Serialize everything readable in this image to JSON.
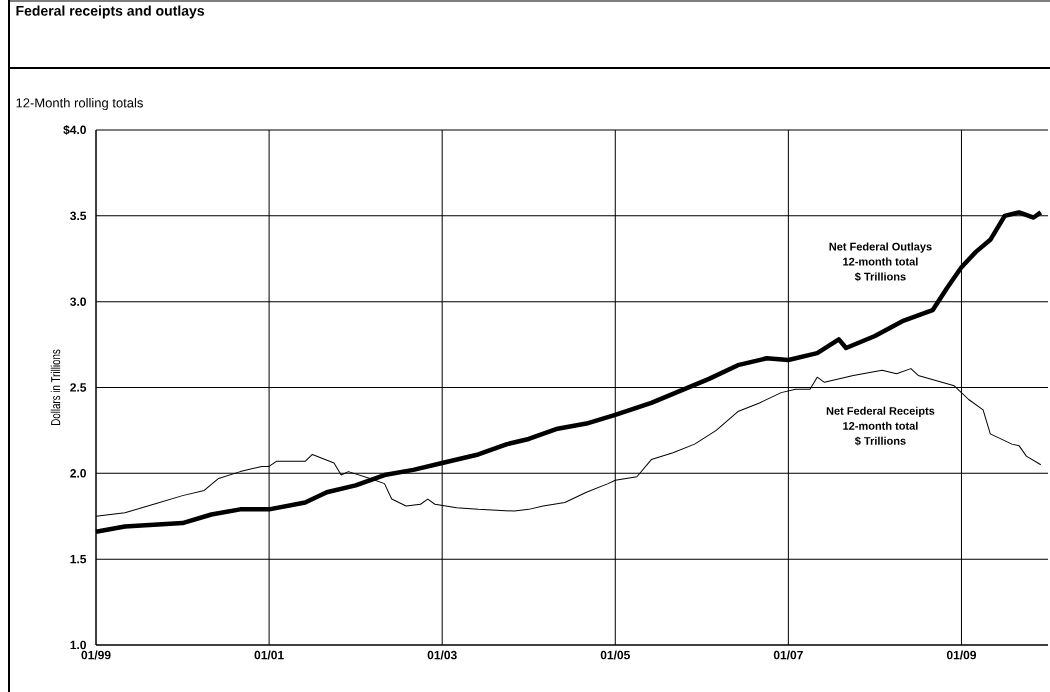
{
  "chart_data": {
    "type": "line",
    "title": "Federal receipts and outlays",
    "subtitle": "12-Month rolling totals",
    "ylabel": "Dollars in Trillions",
    "xlim": [
      "1999-01",
      "2010-01"
    ],
    "ylim": [
      1.0,
      4.0
    ],
    "xticks": [
      {
        "value": "1999-01",
        "label": "01/99"
      },
      {
        "value": "2001-01",
        "label": "01/01"
      },
      {
        "value": "2003-01",
        "label": "01/03"
      },
      {
        "value": "2005-01",
        "label": "01/05"
      },
      {
        "value": "2007-01",
        "label": "01/07"
      },
      {
        "value": "2009-01",
        "label": "01/09"
      }
    ],
    "yticks": [
      {
        "value": 1.0,
        "label": "1.0"
      },
      {
        "value": 1.5,
        "label": "1.5"
      },
      {
        "value": 2.0,
        "label": "2.0"
      },
      {
        "value": 2.5,
        "label": "2.5"
      },
      {
        "value": 3.0,
        "label": "3.0"
      },
      {
        "value": 3.5,
        "label": "3.5"
      },
      {
        "value": 4.0,
        "label": "$4.0"
      }
    ],
    "grid": true,
    "annotations": [
      "12-month total",
      "$ Trillions",
      "12-month total",
      "$ Trillions"
    ],
    "series": [
      {
        "name": "Net Federal Outlays",
        "color": "#000000",
        "x": [
          "1999-01",
          "1999-05",
          "2000-01",
          "2000-05",
          "2000-09",
          "2001-01",
          "2001-06",
          "2001-09",
          "2002-01",
          "2002-05",
          "2002-09",
          "2003-01",
          "2003-06",
          "2003-10",
          "2004-01",
          "2004-05",
          "2004-09",
          "2005-01",
          "2005-06",
          "2005-10",
          "2006-02",
          "2006-06",
          "2006-10",
          "2007-01",
          "2007-05",
          "2007-08",
          "2007-09",
          "2008-01",
          "2008-05",
          "2008-09",
          "2008-11",
          "2009-01",
          "2009-03",
          "2009-05",
          "2009-07",
          "2009-09",
          "2009-11",
          "2009-12"
        ],
        "values": [
          1.66,
          1.69,
          1.71,
          1.76,
          1.79,
          1.79,
          1.83,
          1.89,
          1.93,
          1.99,
          2.02,
          2.06,
          2.11,
          2.17,
          2.2,
          2.26,
          2.29,
          2.34,
          2.41,
          2.48,
          2.55,
          2.63,
          2.67,
          2.66,
          2.7,
          2.78,
          2.73,
          2.8,
          2.89,
          2.95,
          3.08,
          3.2,
          3.29,
          3.36,
          3.5,
          3.52,
          3.49,
          3.52
        ]
      },
      {
        "name": "Net Federal Receipts",
        "color": "#000000",
        "x": [
          "1999-01",
          "1999-05",
          "1999-09",
          "2000-01",
          "2000-04",
          "2000-06",
          "2000-09",
          "2000-12",
          "2001-01",
          "2001-02",
          "2001-06",
          "2001-07",
          "2001-10",
          "2001-11",
          "2001-12",
          "2002-03",
          "2002-05",
          "2002-06",
          "2002-08",
          "2002-10",
          "2002-11",
          "2002-12",
          "2003-03",
          "2003-06",
          "2003-11",
          "2004-01",
          "2004-03",
          "2004-06",
          "2004-09",
          "2004-12",
          "2005-01",
          "2005-04",
          "2005-06",
          "2005-09",
          "2005-12",
          "2006-03",
          "2006-06",
          "2006-09",
          "2006-12",
          "2007-02",
          "2007-04",
          "2007-05",
          "2007-06",
          "2007-10",
          "2008-02",
          "2008-04",
          "2008-06",
          "2008-07",
          "2008-12",
          "2009-02",
          "2009-04",
          "2009-05",
          "2009-08",
          "2009-09",
          "2009-10",
          "2009-12"
        ],
        "values": [
          1.75,
          1.77,
          1.82,
          1.87,
          1.9,
          1.97,
          2.01,
          2.04,
          2.04,
          2.07,
          2.07,
          2.11,
          2.06,
          1.99,
          2.01,
          1.97,
          1.94,
          1.85,
          1.81,
          1.82,
          1.85,
          1.82,
          1.8,
          1.79,
          1.78,
          1.79,
          1.81,
          1.83,
          1.89,
          1.94,
          1.96,
          1.98,
          2.08,
          2.12,
          2.17,
          2.25,
          2.36,
          2.41,
          2.47,
          2.49,
          2.49,
          2.56,
          2.53,
          2.57,
          2.6,
          2.58,
          2.61,
          2.57,
          2.51,
          2.43,
          2.37,
          2.23,
          2.17,
          2.16,
          2.1,
          2.05
        ]
      }
    ]
  }
}
